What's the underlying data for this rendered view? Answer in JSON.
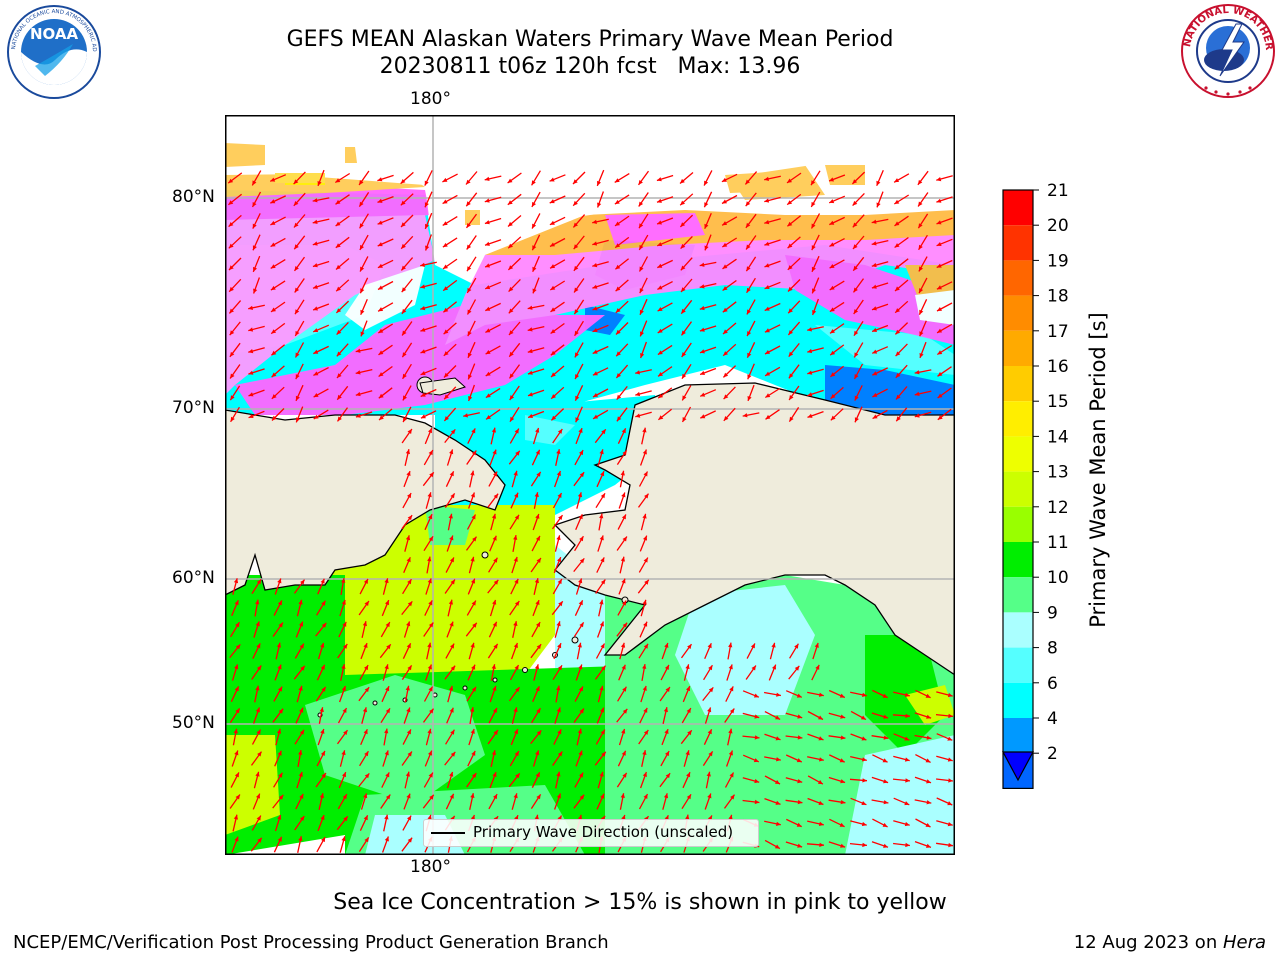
{
  "header": {
    "title_line1": "GEFS MEAN Alaskan Waters Primary Wave Mean Period",
    "title_line2": "20230811 t06z 120h fcst   Max: 13.96"
  },
  "logos": {
    "left": {
      "text": "NOAA",
      "ring_text": "NATIONAL OCEANIC AND ATMOSPHERIC ADMINISTRATION · U.S. DEPARTMENT OF COMMERCE"
    },
    "right": {
      "ring_text": "NATIONAL WEATHER SERVICE"
    }
  },
  "map": {
    "lon_label_top": "180°",
    "lon_label_bottom": "180°",
    "lat_labels": [
      "80°N",
      "70°N",
      "60°N",
      "50°N"
    ],
    "land_color": "#efecdc",
    "grid_color": "#b3b3b3",
    "arrow_color": "#ff0000",
    "legend_label": "Primary Wave Direction (unscaled)"
  },
  "colorbar": {
    "title": "Primary Wave Mean Period [s]",
    "ticks": [
      "21",
      "20",
      "19",
      "18",
      "17",
      "16",
      "15",
      "14",
      "13",
      "12",
      "11",
      "10",
      "9",
      "8",
      "6",
      "4",
      "2"
    ],
    "colors_top_to_bottom": [
      "#ff0000",
      "#ff3300",
      "#ff6600",
      "#ff8c00",
      "#ffaa00",
      "#ffcc00",
      "#ffee00",
      "#eeff00",
      "#ccff00",
      "#99ff00",
      "#00ee00",
      "#55ff88",
      "#aaffff",
      "#55ffff",
      "#00ffff",
      "#0099ff",
      "#0066ff"
    ],
    "extend_color": "#0000ff"
  },
  "note": "Sea Ice Concentration > 15% is shown in pink to yellow",
  "footer": {
    "left": "NCEP/EMC/Verification Post Processing Product Generation Branch",
    "right_date": "12 Aug 2023 on ",
    "right_machine": "Hera"
  }
}
